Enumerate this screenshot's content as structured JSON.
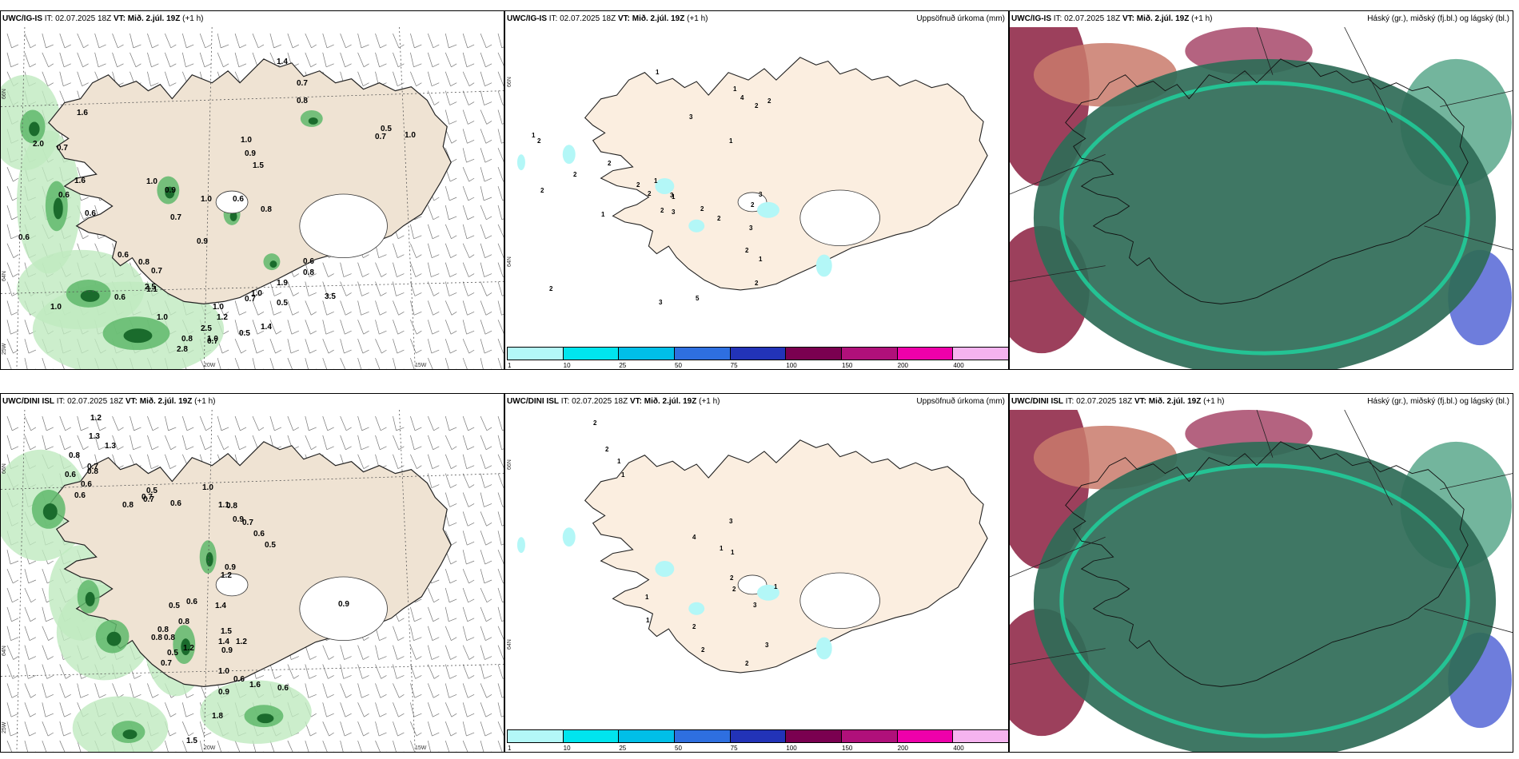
{
  "panels": [
    {
      "model": "UWC/IG-IS",
      "it_label": "IT:",
      "it": "02.07.2025 18Z",
      "vt_label": "VT:",
      "vt": "Mið. 2.júl. 19Z",
      "offset": "(+1 h)",
      "right_title": ""
    },
    {
      "model": "UWC/IG-IS",
      "it_label": "IT:",
      "it": "02.07.2025 18Z",
      "vt_label": "VT:",
      "vt": "Mið. 2.júl. 19Z",
      "offset": "(+1 h)",
      "right_title": "Uppsöfnuð úrkoma (mm)"
    },
    {
      "model": "UWC/IG-IS",
      "it_label": "IT:",
      "it": "02.07.2025 18Z",
      "vt_label": "VT:",
      "vt": "Mið. 2.júl. 19Z",
      "offset": "(+1 h)",
      "right_title": "Háský (gr.), miðský (fj.bl.) og lágský (bl.)"
    },
    {
      "model": "UWC/DINI ISL",
      "it_label": "IT:",
      "it": "02.07.2025 18Z",
      "vt_label": "VT:",
      "vt": "Mið. 2.júl. 19Z",
      "offset": "(+1 h)",
      "right_title": ""
    },
    {
      "model": "UWC/DINI ISL",
      "it_label": "IT:",
      "it": "02.07.2025 18Z",
      "vt_label": "VT:",
      "vt": "Mið. 2.júl. 19Z",
      "offset": "(+1 h)",
      "right_title": "Uppsöfnuð úrkoma (mm)"
    },
    {
      "model": "UWC/DINI ISL",
      "it_label": "IT:",
      "it": "02.07.2025 18Z",
      "vt_label": "VT:",
      "vt": "Mið. 2.júl. 19Z",
      "offset": "(+1 h)",
      "right_title": "Háský (gr.), miðský (fj.bl.) og lágský (bl.)"
    }
  ],
  "grid_labels": {
    "lat66": "66N",
    "lat64": "64N",
    "lon25": "25W",
    "lon20": "20W",
    "lon15": "15W"
  },
  "colorbar": {
    "ticks": [
      "1",
      "10",
      "25",
      "50",
      "75",
      "100",
      "150",
      "200",
      "400"
    ],
    "colors": [
      "#b3f7f7",
      "#00e5ee",
      "#00bfe8",
      "#2e6fe0",
      "#2233b8",
      "#7a0050",
      "#b0107a",
      "#ee00aa",
      "#f5b3ef"
    ]
  },
  "precip_labels_top": [
    "1",
    "1",
    "4",
    "2",
    "3",
    "1",
    "2",
    "1",
    "2",
    "2",
    "2",
    "2",
    "2",
    "3",
    "1",
    "2",
    "3",
    "1",
    "2",
    "2",
    "3",
    "2",
    "3",
    "2",
    "1",
    "2",
    "5",
    "3",
    "2",
    "1",
    "2"
  ],
  "precip_labels_bottom": [
    "2",
    "2",
    "1",
    "1",
    "4",
    "3",
    "1",
    "1",
    "2",
    "2",
    "2",
    "3",
    "1",
    "1",
    "1",
    "2",
    "2",
    "3"
  ],
  "wind_labels_top": [
    "1.4",
    "0.7",
    "0.8",
    "1.6",
    "0.5",
    "0.7",
    "1.0",
    "1.6",
    "2.0",
    "0.7",
    "0.6",
    "0.6",
    "1.0",
    "0.9",
    "1.5",
    "1.0",
    "0.9",
    "0.6",
    "1.0",
    "0.7",
    "0.9",
    "0.6",
    "0.8",
    "0.7",
    "2.5",
    "0.6",
    "1.1",
    "1.0",
    "1.2",
    "2.5",
    "0.6",
    "0.8",
    "0.6",
    "0.8",
    "0.5",
    "1.0",
    "1.4",
    "0.5",
    "1.0",
    "0.8",
    "2.8",
    "1.0",
    "0.7",
    "1.9",
    "1.0",
    "0.7",
    "3.5"
  ],
  "wind_labels_bottom": [
    "1.2",
    "1.3",
    "0.8",
    "1.3",
    "0.7",
    "0.6",
    "0.8",
    "0.6",
    "0.6",
    "0.8",
    "0.7",
    "0.7",
    "0.6",
    "1.0",
    "1.1",
    "0.5",
    "0.8",
    "0.7",
    "0.6",
    "0.5",
    "0.9",
    "0.6",
    "0.8",
    "0.5",
    "0.9",
    "1.2",
    "1.4",
    "1.5",
    "1.4",
    "0.9",
    "0.8",
    "0.8",
    "0.8",
    "0.5",
    "0.7",
    "1.2",
    "1.2",
    "1.0",
    "0.6",
    "1.6",
    "0.9",
    "1.8",
    "1.5",
    "0.6",
    "0.9"
  ]
}
